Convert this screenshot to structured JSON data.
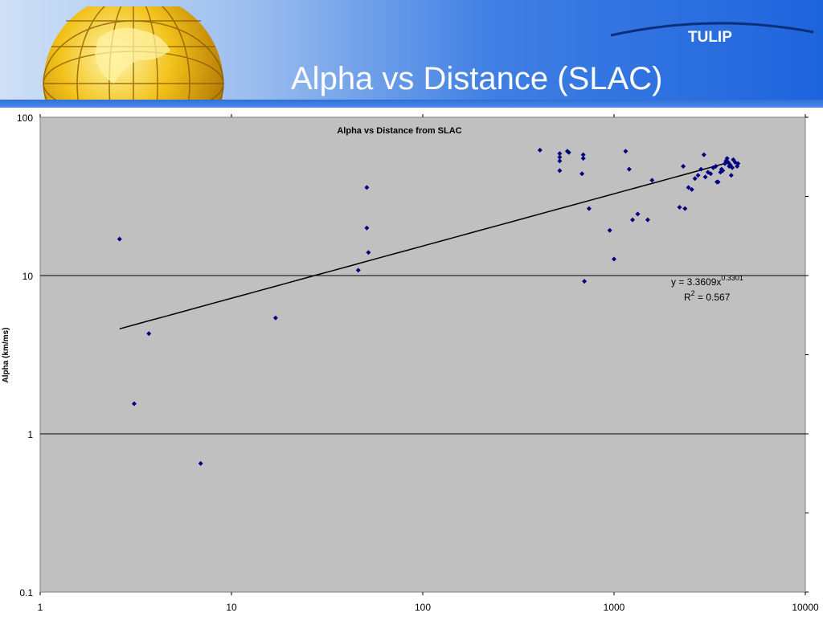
{
  "slide": {
    "title": "Alpha vs Distance (SLAC)",
    "brand": "TULIP"
  },
  "colors": {
    "banner_dark": "#1e64dd",
    "banner_light": "#cfe0f6",
    "plot_background": "#c0c0c0",
    "point_color": "#000080",
    "trend_color": "#000000"
  },
  "icons": [
    "globe-icon"
  ],
  "chart_data": {
    "type": "scatter",
    "title": "Alpha vs Distance from SLAC",
    "xlabel": "",
    "ylabel": "Alpha (km/ms)",
    "xscale": "log",
    "yscale": "log",
    "xlim": [
      1,
      10000
    ],
    "ylim": [
      0.1,
      100
    ],
    "xticks": [
      "1",
      "10",
      "100",
      "1000",
      "10000"
    ],
    "yticks": [
      "0.1",
      "1",
      "10",
      "100"
    ],
    "grid": "horizontal major",
    "legend": "none",
    "trendline": {
      "type": "power",
      "coef": 3.3609,
      "exponent": 0.3301,
      "x_range": [
        2.6,
        4000
      ],
      "eq_prefix": "y = 3.3609x",
      "eq_exponent": "0.3301",
      "r2_prefix": "R",
      "r2_sup": "2",
      "r2_value": " = 0.567"
    },
    "points": [
      [
        2.6,
        17
      ],
      [
        3.1,
        1.55
      ],
      [
        3.7,
        4.3
      ],
      [
        6.9,
        0.65
      ],
      [
        17,
        5.4
      ],
      [
        46,
        10.8
      ],
      [
        51,
        36
      ],
      [
        51,
        20
      ],
      [
        52,
        14
      ],
      [
        410,
        62
      ],
      [
        520,
        59
      ],
      [
        520,
        56
      ],
      [
        520,
        53
      ],
      [
        520,
        46
      ],
      [
        570,
        61
      ],
      [
        580,
        60
      ],
      [
        680,
        44
      ],
      [
        690,
        58
      ],
      [
        690,
        55
      ],
      [
        700,
        9.2
      ],
      [
        740,
        26.5
      ],
      [
        950,
        19.3
      ],
      [
        1000,
        12.7
      ],
      [
        1150,
        61
      ],
      [
        1200,
        47
      ],
      [
        1250,
        22.5
      ],
      [
        1330,
        24.5
      ],
      [
        1500,
        22.5
      ],
      [
        1580,
        40
      ],
      [
        2200,
        27
      ],
      [
        2300,
        49
      ],
      [
        2350,
        26.5
      ],
      [
        2450,
        36
      ],
      [
        2550,
        35
      ],
      [
        2650,
        41
      ],
      [
        2750,
        43
      ],
      [
        2850,
        47
      ],
      [
        2950,
        58
      ],
      [
        3000,
        42
      ],
      [
        3100,
        45
      ],
      [
        3200,
        44
      ],
      [
        3300,
        48
      ],
      [
        3400,
        49
      ],
      [
        3450,
        39
      ],
      [
        3500,
        39
      ],
      [
        3600,
        45
      ],
      [
        3650,
        47
      ],
      [
        3700,
        46
      ],
      [
        3800,
        51
      ],
      [
        3850,
        53
      ],
      [
        3900,
        55
      ],
      [
        3950,
        52
      ],
      [
        4000,
        49
      ],
      [
        4050,
        50
      ],
      [
        4100,
        43
      ],
      [
        4150,
        48
      ],
      [
        4200,
        54
      ],
      [
        4300,
        52
      ],
      [
        4400,
        49
      ],
      [
        4450,
        51
      ]
    ]
  }
}
